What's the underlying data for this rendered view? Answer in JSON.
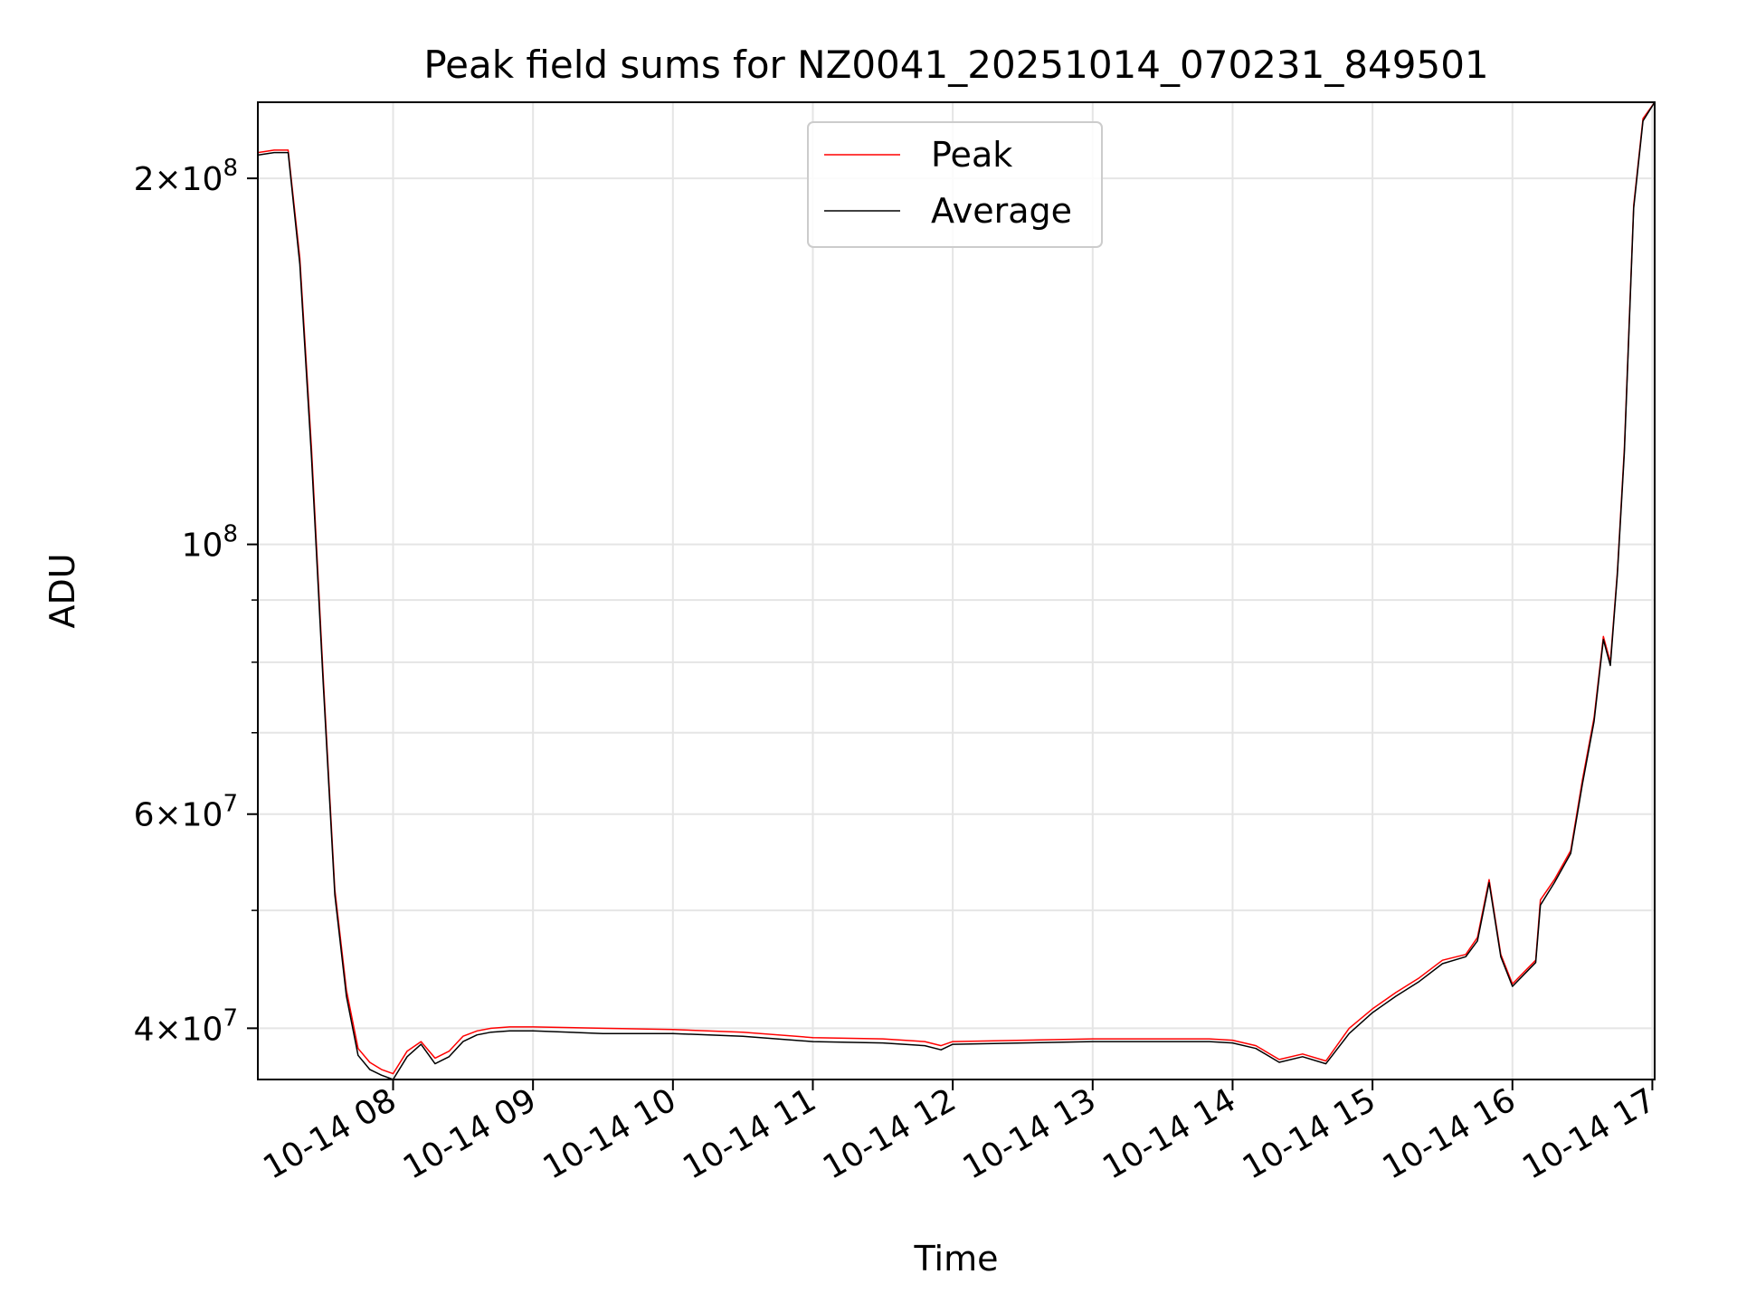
{
  "chart_data": {
    "type": "line",
    "title": "Peak field sums for NZ0041_20251014_070231_849501",
    "xlabel": "Time",
    "ylabel": "ADU",
    "yscale": "log",
    "ylim": [
      36300000,
      231000000
    ],
    "xlim": [
      "2025-10-14 07:02",
      "2025-10-14 17:01"
    ],
    "grid": true,
    "legend": {
      "position": "top-center",
      "entries": [
        "Peak",
        "Average"
      ]
    },
    "colors": {
      "Peak": "#ff0000",
      "Average": "#000000"
    },
    "x_ticks": [
      "10-14 08",
      "10-14 09",
      "10-14 10",
      "10-14 11",
      "10-14 12",
      "10-14 13",
      "10-14 14",
      "10-14 15",
      "10-14 16",
      "10-14 17"
    ],
    "y_ticks": [
      {
        "value": 40000000,
        "mantissa": "4",
        "exp": "7"
      },
      {
        "value": 60000000,
        "mantissa": "6",
        "exp": "7"
      },
      {
        "value": 100000000,
        "mantissa": "",
        "exp": "8"
      },
      {
        "value": 200000000,
        "mantissa": "2",
        "exp": "8"
      }
    ],
    "y_minor_ticks": [
      50000000,
      70000000,
      80000000,
      90000000
    ],
    "series": [
      {
        "name": "Peak",
        "x": [
          "2025-10-14 07:02",
          "2025-10-14 07:09",
          "2025-10-14 07:15",
          "2025-10-14 07:20",
          "2025-10-14 07:25",
          "2025-10-14 07:30",
          "2025-10-14 07:35",
          "2025-10-14 07:40",
          "2025-10-14 07:45",
          "2025-10-14 07:50",
          "2025-10-14 07:55",
          "2025-10-14 08:00",
          "2025-10-14 08:06",
          "2025-10-14 08:12",
          "2025-10-14 08:18",
          "2025-10-14 08:24",
          "2025-10-14 08:30",
          "2025-10-14 08:36",
          "2025-10-14 08:42",
          "2025-10-14 08:50",
          "2025-10-14 09:00",
          "2025-10-14 09:30",
          "2025-10-14 10:00",
          "2025-10-14 10:30",
          "2025-10-14 11:00",
          "2025-10-14 11:30",
          "2025-10-14 11:48",
          "2025-10-14 11:55",
          "2025-10-14 12:00",
          "2025-10-14 12:30",
          "2025-10-14 13:00",
          "2025-10-14 13:30",
          "2025-10-14 13:50",
          "2025-10-14 14:00",
          "2025-10-14 14:10",
          "2025-10-14 14:20",
          "2025-10-14 14:30",
          "2025-10-14 14:40",
          "2025-10-14 14:50",
          "2025-10-14 15:00",
          "2025-10-14 15:10",
          "2025-10-14 15:20",
          "2025-10-14 15:30",
          "2025-10-14 15:40",
          "2025-10-14 15:45",
          "2025-10-14 15:50",
          "2025-10-14 15:55",
          "2025-10-14 16:00",
          "2025-10-14 16:05",
          "2025-10-14 16:10",
          "2025-10-14 16:12",
          "2025-10-14 16:18",
          "2025-10-14 16:25",
          "2025-10-14 16:30",
          "2025-10-14 16:35",
          "2025-10-14 16:39",
          "2025-10-14 16:42",
          "2025-10-14 16:45",
          "2025-10-14 16:48",
          "2025-10-14 16:52",
          "2025-10-14 16:56",
          "2025-10-14 17:01"
        ],
        "y": [
          210000000,
          211000000,
          211000000,
          172000000,
          120000000,
          78000000,
          52000000,
          43000000,
          38500000,
          37500000,
          37000000,
          36700000,
          38300000,
          39000000,
          37800000,
          38300000,
          39400000,
          39800000,
          40000000,
          40100000,
          40100000,
          40000000,
          39900000,
          39700000,
          39300000,
          39200000,
          39000000,
          38700000,
          39000000,
          39100000,
          39200000,
          39200000,
          39200000,
          39100000,
          38700000,
          37700000,
          38100000,
          37600000,
          40000000,
          41500000,
          42800000,
          44000000,
          45500000,
          46000000,
          47500000,
          53000000,
          46000000,
          43500000,
          44500000,
          45500000,
          51000000,
          53000000,
          56000000,
          64000000,
          72000000,
          84000000,
          80000000,
          95000000,
          120000000,
          190000000,
          224000000,
          231000000
        ]
      },
      {
        "name": "Average",
        "x": [
          "2025-10-14 07:02",
          "2025-10-14 07:09",
          "2025-10-14 07:15",
          "2025-10-14 07:20",
          "2025-10-14 07:25",
          "2025-10-14 07:30",
          "2025-10-14 07:35",
          "2025-10-14 07:40",
          "2025-10-14 07:45",
          "2025-10-14 07:50",
          "2025-10-14 07:55",
          "2025-10-14 08:00",
          "2025-10-14 08:06",
          "2025-10-14 08:12",
          "2025-10-14 08:18",
          "2025-10-14 08:24",
          "2025-10-14 08:30",
          "2025-10-14 08:36",
          "2025-10-14 08:42",
          "2025-10-14 08:50",
          "2025-10-14 09:00",
          "2025-10-14 09:30",
          "2025-10-14 10:00",
          "2025-10-14 10:30",
          "2025-10-14 11:00",
          "2025-10-14 11:30",
          "2025-10-14 11:48",
          "2025-10-14 11:55",
          "2025-10-14 12:00",
          "2025-10-14 12:30",
          "2025-10-14 13:00",
          "2025-10-14 13:30",
          "2025-10-14 13:50",
          "2025-10-14 14:00",
          "2025-10-14 14:10",
          "2025-10-14 14:20",
          "2025-10-14 14:30",
          "2025-10-14 14:40",
          "2025-10-14 14:50",
          "2025-10-14 15:00",
          "2025-10-14 15:10",
          "2025-10-14 15:20",
          "2025-10-14 15:30",
          "2025-10-14 15:40",
          "2025-10-14 15:45",
          "2025-10-14 15:50",
          "2025-10-14 15:55",
          "2025-10-14 16:00",
          "2025-10-14 16:05",
          "2025-10-14 16:10",
          "2025-10-14 16:12",
          "2025-10-14 16:18",
          "2025-10-14 16:25",
          "2025-10-14 16:30",
          "2025-10-14 16:35",
          "2025-10-14 16:39",
          "2025-10-14 16:42",
          "2025-10-14 16:45",
          "2025-10-14 16:48",
          "2025-10-14 16:52",
          "2025-10-14 16:56",
          "2025-10-14 17:01"
        ],
        "y": [
          209000000,
          210000000,
          210000000,
          170000000,
          118000000,
          77000000,
          51500000,
          42500000,
          38000000,
          37000000,
          36600000,
          36300000,
          37900000,
          38800000,
          37400000,
          37900000,
          39000000,
          39500000,
          39700000,
          39800000,
          39800000,
          39600000,
          39600000,
          39400000,
          39000000,
          38900000,
          38700000,
          38400000,
          38800000,
          38900000,
          39000000,
          39000000,
          39000000,
          38900000,
          38500000,
          37500000,
          37900000,
          37400000,
          39600000,
          41200000,
          42500000,
          43700000,
          45200000,
          45800000,
          47200000,
          52700000,
          45800000,
          43300000,
          44300000,
          45300000,
          50500000,
          52700000,
          55700000,
          63500000,
          71500000,
          83500000,
          79500000,
          94500000,
          119000000,
          189000000,
          223000000,
          231000000
        ]
      }
    ]
  }
}
